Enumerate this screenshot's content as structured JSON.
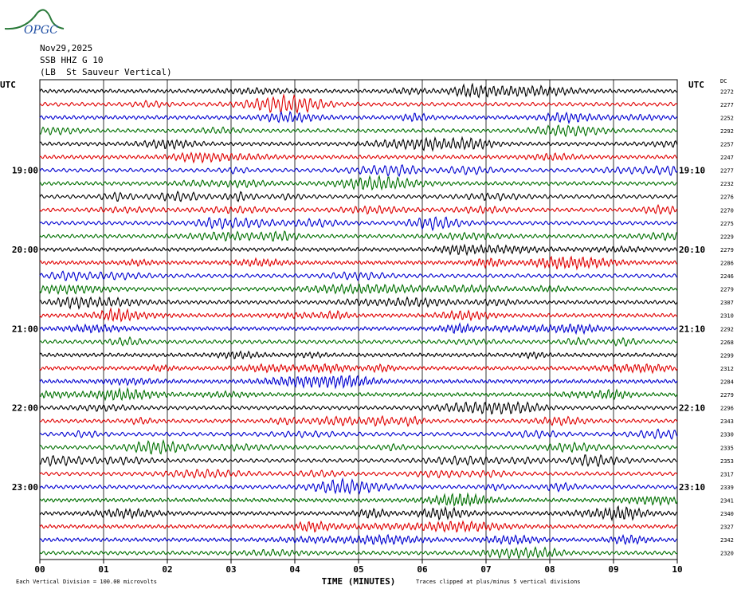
{
  "logo": {
    "text": "OPGC",
    "color": "#2a7a3a",
    "text_color": "#1f4ea3"
  },
  "header": {
    "date": "Nov29,2025",
    "station": "SSB HHZ G 10",
    "location": "(LB  St Sauveur Vertical)"
  },
  "chart_data": {
    "type": "line",
    "title": "",
    "xlabel": "TIME (MINUTES)",
    "ylabel": "",
    "x_range": [
      0,
      10
    ],
    "x_ticks": [
      "00",
      "01",
      "02",
      "03",
      "04",
      "05",
      "06",
      "07",
      "08",
      "09",
      "10"
    ],
    "left_axis_label": "UTC",
    "right_axis_label": "UTC",
    "dc_label": "DC",
    "left_time_labels": [
      {
        "row": 6,
        "label": "19:00"
      },
      {
        "row": 12,
        "label": "20:00"
      },
      {
        "row": 18,
        "label": "21:00"
      },
      {
        "row": 24,
        "label": "22:00"
      },
      {
        "row": 30,
        "label": "23:00"
      }
    ],
    "right_time_labels": [
      {
        "row": 6,
        "label": "19:10"
      },
      {
        "row": 12,
        "label": "20:10"
      },
      {
        "row": 18,
        "label": "21:10"
      },
      {
        "row": 24,
        "label": "22:10"
      },
      {
        "row": 30,
        "label": "23:10"
      }
    ],
    "trace_colors": [
      "#000000",
      "#e00000",
      "#0000d0",
      "#007000"
    ],
    "dc_offsets": [
      2272,
      2277,
      2252,
      2292,
      2257,
      2247,
      2277,
      2232,
      2276,
      2270,
      2275,
      2229,
      2279,
      2286,
      2246,
      2279,
      2307,
      2310,
      2292,
      2268,
      2299,
      2312,
      2284,
      2279,
      2296,
      2343,
      2330,
      2335,
      2353,
      2317,
      2339,
      2341,
      2340,
      2327,
      2342,
      2320
    ],
    "footer_left": "Each Vertical Division =  100.00 microvolts",
    "footer_right": "Traces clipped at plus/minus 5 vertical divisions",
    "grid": true
  }
}
